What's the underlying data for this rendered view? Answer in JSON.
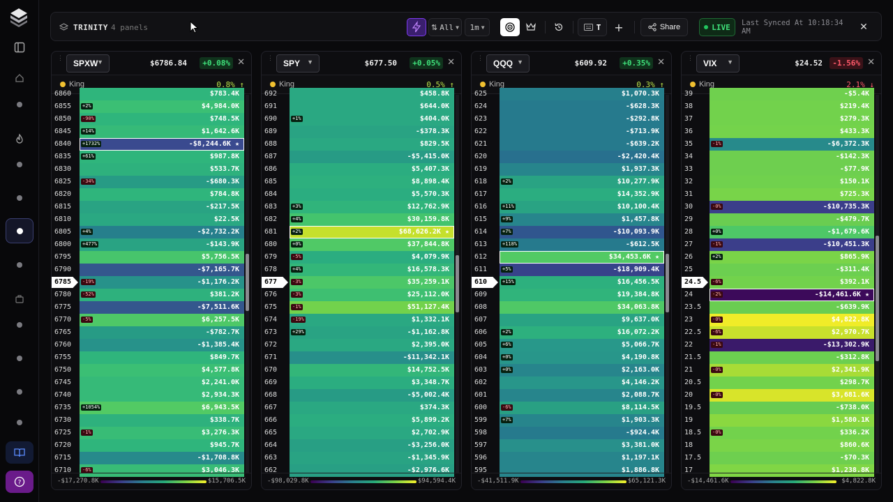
{
  "app": {
    "name": "TRINITY",
    "panel_count": "4 panels"
  },
  "toolbar": {
    "filter_all": "All",
    "interval": "1m",
    "tool_t": "T",
    "share": "Share",
    "live": "LIVE",
    "last_synced": "Last Synced At 10:18:34 AM"
  },
  "colors": {
    "accent": "#7c3aed",
    "live_green": "#22c55e",
    "king_dot": "#f0c030",
    "positive": "#3fe07a",
    "negative": "#ff5a6a"
  },
  "sidebar": {
    "icons": [
      "logo-icon",
      "panel-toggle-icon",
      "home-icon",
      "dot-icon",
      "fire-icon",
      "dot-icon",
      "dot-icon",
      "dot-icon-active",
      "dot-icon",
      "briefcase-icon",
      "dot-icon",
      "dot-icon",
      "dot-icon",
      "dot-icon",
      "book-icon",
      "help-icon"
    ]
  },
  "panels": [
    {
      "ticker": "SPXW",
      "price": "$6786.84",
      "change": "+0.08%",
      "change_dir": "pos",
      "king_label": "King",
      "king_pct": "0.8% ↑",
      "king_dir": "up",
      "scale_min": "-$17,270.8K",
      "scale_max": "$15,706.5K",
      "rows": [
        {
          "strike": "6860",
          "value": "$783.4K",
          "color": "#2fb57c"
        },
        {
          "strike": "6855",
          "value": "$4,984.0K",
          "color": "#3bbf74",
          "tag": "+2%"
        },
        {
          "strike": "6850",
          "value": "$748.5K",
          "color": "#2fb57c",
          "tag": "-90%",
          "tag_neg": true
        },
        {
          "strike": "6845",
          "value": "$1,642.6K",
          "color": "#36ba78",
          "tag": "+14%"
        },
        {
          "strike": "6840",
          "value": "-$8,244.6K ★",
          "color": "#3a4a8f",
          "tag": "+1732%",
          "hl": true
        },
        {
          "strike": "6835",
          "value": "$987.8K",
          "color": "#2fb57c",
          "tag": "+61%"
        },
        {
          "strike": "6830",
          "value": "$533.7K",
          "color": "#2eb17d"
        },
        {
          "strike": "6825",
          "value": "-$680.3K",
          "color": "#279b85",
          "tag": "-34%",
          "tag_neg": true
        },
        {
          "strike": "6820",
          "value": "$784.8K",
          "color": "#2fb57c"
        },
        {
          "strike": "6815",
          "value": "-$217.5K",
          "color": "#29a383"
        },
        {
          "strike": "6810",
          "value": "$22.5K",
          "color": "#2aa882"
        },
        {
          "strike": "6805",
          "value": "-$2,732.2K",
          "color": "#267f8c",
          "tag": "+4%"
        },
        {
          "strike": "6800",
          "value": "-$143.9K",
          "color": "#29a383",
          "tag": "+477%"
        },
        {
          "strike": "6795",
          "value": "$5,756.5K",
          "color": "#47c56c"
        },
        {
          "strike": "6790",
          "value": "-$7,165.7K",
          "color": "#34578d"
        },
        {
          "strike": "6785",
          "value": "-$1,176.2K",
          "color": "#27928a",
          "tag": "-19%",
          "tag_neg": true,
          "current": true
        },
        {
          "strike": "6780",
          "value": "$381.2K",
          "color": "#2eb17d",
          "tag": "-52%",
          "tag_neg": true
        },
        {
          "strike": "6775",
          "value": "-$7,511.6K",
          "color": "#34578d"
        },
        {
          "strike": "6770",
          "value": "$6,257.5K",
          "color": "#4ec867",
          "tag": "-5%",
          "tag_neg": true
        },
        {
          "strike": "6765",
          "value": "-$782.7K",
          "color": "#279b85"
        },
        {
          "strike": "6760",
          "value": "-$1,385.4K",
          "color": "#27928a"
        },
        {
          "strike": "6755",
          "value": "$849.7K",
          "color": "#2fb57c"
        },
        {
          "strike": "6750",
          "value": "$4,577.8K",
          "color": "#3bbf74"
        },
        {
          "strike": "6745",
          "value": "$2,241.0K",
          "color": "#36ba78"
        },
        {
          "strike": "6740",
          "value": "$2,934.3K",
          "color": "#36ba78"
        },
        {
          "strike": "6735",
          "value": "$6,943.5K",
          "color": "#52ca64",
          "tag": "+1054%"
        },
        {
          "strike": "6730",
          "value": "$338.7K",
          "color": "#2eb17d"
        },
        {
          "strike": "6725",
          "value": "$3,276.3K",
          "color": "#38bc76",
          "tag": "-1%",
          "tag_neg": true
        },
        {
          "strike": "6720",
          "value": "$945.7K",
          "color": "#2fb57c"
        },
        {
          "strike": "6715",
          "value": "-$1,708.8K",
          "color": "#278a8b"
        },
        {
          "strike": "6710",
          "value": "$3,046.3K",
          "color": "#38bc76",
          "tag": "-6%",
          "tag_neg": true
        }
      ]
    },
    {
      "ticker": "SPY",
      "price": "$677.50",
      "change": "+0.05%",
      "change_dir": "pos",
      "king_label": "King",
      "king_pct": "0.5% ↑",
      "king_dir": "up",
      "scale_min": "-$98,029.8K",
      "scale_max": "$94,594.4K",
      "rows": [
        {
          "strike": "692",
          "value": "$458.8K",
          "color": "#2aa882"
        },
        {
          "strike": "691",
          "value": "$644.0K",
          "color": "#2aa882"
        },
        {
          "strike": "690",
          "value": "$404.0K",
          "color": "#2aa882",
          "tag": "+1%"
        },
        {
          "strike": "689",
          "value": "-$378.3K",
          "color": "#29a383"
        },
        {
          "strike": "688",
          "value": "$829.5K",
          "color": "#2aa882"
        },
        {
          "strike": "687",
          "value": "-$5,415.0K",
          "color": "#279b85"
        },
        {
          "strike": "686",
          "value": "$5,407.3K",
          "color": "#2bad80"
        },
        {
          "strike": "685",
          "value": "$8,898.4K",
          "color": "#2db07e"
        },
        {
          "strike": "684",
          "value": "$5,570.3K",
          "color": "#2bad80"
        },
        {
          "strike": "683",
          "value": "$12,762.9K",
          "color": "#30b47b",
          "tag": "+3%"
        },
        {
          "strike": "682",
          "value": "$30,159.8K",
          "color": "#44c46d",
          "tag": "+4%"
        },
        {
          "strike": "681",
          "value": "$68,626.2K ★",
          "color": "#c5e02c",
          "tag": "+2%",
          "hl": true
        },
        {
          "strike": "680",
          "value": "$37,844.8K",
          "color": "#50c966",
          "tag": "+0%"
        },
        {
          "strike": "679",
          "value": "$4,079.9K",
          "color": "#2bad80",
          "tag": "-5%",
          "tag_neg": true
        },
        {
          "strike": "678",
          "value": "$16,578.3K",
          "color": "#33b679",
          "tag": "+4%"
        },
        {
          "strike": "677",
          "value": "$35,259.1K",
          "color": "#4cc768",
          "tag": "-3%",
          "tag_neg": true,
          "current": true
        },
        {
          "strike": "676",
          "value": "$25,112.0K",
          "color": "#3ebf71",
          "tag": "-3%",
          "tag_neg": true
        },
        {
          "strike": "675",
          "value": "$51,127.4K",
          "color": "#72d24c",
          "tag": "-1%",
          "tag_neg": true
        },
        {
          "strike": "674",
          "value": "$1,332.1K",
          "color": "#2aa882",
          "tag": "-19%",
          "tag_neg": true
        },
        {
          "strike": "673",
          "value": "-$1,162.8K",
          "color": "#29a383",
          "tag": "+29%"
        },
        {
          "strike": "672",
          "value": "$2,395.0K",
          "color": "#2aa882"
        },
        {
          "strike": "671",
          "value": "-$11,342.1K",
          "color": "#278f8a"
        },
        {
          "strike": "670",
          "value": "$14,752.5K",
          "color": "#33b679"
        },
        {
          "strike": "669",
          "value": "$3,348.7K",
          "color": "#2bad80"
        },
        {
          "strike": "668",
          "value": "-$5,002.4K",
          "color": "#279b85"
        },
        {
          "strike": "667",
          "value": "$374.3K",
          "color": "#2aa882"
        },
        {
          "strike": "666",
          "value": "$5,899.2K",
          "color": "#2bad80"
        },
        {
          "strike": "665",
          "value": "$2,702.9K",
          "color": "#2aa882"
        },
        {
          "strike": "664",
          "value": "-$3,256.0K",
          "color": "#289f84"
        },
        {
          "strike": "663",
          "value": "-$1,345.9K",
          "color": "#29a383"
        },
        {
          "strike": "662",
          "value": "-$2,976.6K",
          "color": "#289f84"
        }
      ]
    },
    {
      "ticker": "QQQ",
      "price": "$609.92",
      "change": "+0.35%",
      "change_dir": "pos",
      "king_label": "King",
      "king_pct": "0.3% ↑",
      "king_dir": "up",
      "scale_min": "-$41,511.9K",
      "scale_max": "$65,121.3K",
      "rows": [
        {
          "strike": "625",
          "value": "$1,070.3K",
          "color": "#267f8c"
        },
        {
          "strike": "624",
          "value": "-$628.3K",
          "color": "#267a8d"
        },
        {
          "strike": "623",
          "value": "-$292.8K",
          "color": "#267a8d"
        },
        {
          "strike": "622",
          "value": "-$713.9K",
          "color": "#267a8d"
        },
        {
          "strike": "621",
          "value": "-$639.2K",
          "color": "#267a8d"
        },
        {
          "strike": "620",
          "value": "-$2,420.4K",
          "color": "#28708e"
        },
        {
          "strike": "619",
          "value": "$1,937.3K",
          "color": "#27858c"
        },
        {
          "strike": "618",
          "value": "$10,277.9K",
          "color": "#29a383",
          "tag": "+2%"
        },
        {
          "strike": "617",
          "value": "$14,352.9K",
          "color": "#2bad80"
        },
        {
          "strike": "616",
          "value": "$10,100.4K",
          "color": "#29a383",
          "tag": "+11%"
        },
        {
          "strike": "615",
          "value": "$1,457.8K",
          "color": "#27858c",
          "tag": "+9%"
        },
        {
          "strike": "614",
          "value": "-$10,093.9K",
          "color": "#30568e",
          "tag": "+7%"
        },
        {
          "strike": "613",
          "value": "-$612.5K",
          "color": "#267a8d",
          "tag": "+118%"
        },
        {
          "strike": "612",
          "value": "$34,453.6K ★",
          "color": "#52ca64",
          "hl": true
        },
        {
          "strike": "611",
          "value": "-$18,909.4K",
          "color": "#37438a",
          "tag": "+5%"
        },
        {
          "strike": "610",
          "value": "$16,456.5K",
          "color": "#2db07e",
          "tag": "+15%",
          "current": true
        },
        {
          "strike": "609",
          "value": "$19,384.8K",
          "color": "#30b47b"
        },
        {
          "strike": "608",
          "value": "$34,063.8K",
          "color": "#4fc866"
        },
        {
          "strike": "607",
          "value": "$9,637.0K",
          "color": "#29a383"
        },
        {
          "strike": "606",
          "value": "$16,072.2K",
          "color": "#2db07e",
          "tag": "+2%"
        },
        {
          "strike": "605",
          "value": "$5,066.7K",
          "color": "#28988a",
          "tag": "+6%"
        },
        {
          "strike": "604",
          "value": "$4,190.8K",
          "color": "#28968a",
          "tag": "+0%"
        },
        {
          "strike": "603",
          "value": "$2,163.0K",
          "color": "#27858c",
          "tag": "+0%"
        },
        {
          "strike": "602",
          "value": "$4,146.2K",
          "color": "#28968a"
        },
        {
          "strike": "601",
          "value": "$2,088.7K",
          "color": "#27858c"
        },
        {
          "strike": "600",
          "value": "$8,114.5K",
          "color": "#29a083",
          "tag": "-6%",
          "tag_neg": true
        },
        {
          "strike": "599",
          "value": "$1,903.3K",
          "color": "#27858c",
          "tag": "+7%"
        },
        {
          "strike": "598",
          "value": "-$924.4K",
          "color": "#267a8d"
        },
        {
          "strike": "597",
          "value": "$3,381.0K",
          "color": "#28908b"
        },
        {
          "strike": "596",
          "value": "$1,197.1K",
          "color": "#27858c"
        },
        {
          "strike": "595",
          "value": "$1,886.8K",
          "color": "#27858c"
        }
      ]
    },
    {
      "ticker": "VIX",
      "price": "$24.52",
      "change": "-1.56%",
      "change_dir": "neg",
      "king_label": "King",
      "king_pct": "2.1% ↓",
      "king_dir": "down",
      "scale_min": "-$14,461.6K",
      "scale_max": "$4,822.8K",
      "rows": [
        {
          "strike": "39",
          "value": "-$5.4K",
          "color": "#6fd04e"
        },
        {
          "strike": "38",
          "value": "$219.4K",
          "color": "#72d24c"
        },
        {
          "strike": "37",
          "value": "$279.3K",
          "color": "#72d24c"
        },
        {
          "strike": "36",
          "value": "$433.3K",
          "color": "#74d34b"
        },
        {
          "strike": "35",
          "value": "-$6,372.3K",
          "color": "#278a8b",
          "tag": "-1%",
          "tag_neg": true
        },
        {
          "strike": "34",
          "value": "-$142.3K",
          "color": "#6ecf4f"
        },
        {
          "strike": "33",
          "value": "-$77.9K",
          "color": "#6ecf4f"
        },
        {
          "strike": "32",
          "value": "$150.1K",
          "color": "#70d14d"
        },
        {
          "strike": "31",
          "value": "$725.3K",
          "color": "#78d449"
        },
        {
          "strike": "30",
          "value": "-$10,735.3K",
          "color": "#3b3e8a",
          "tag": "-0%",
          "tag_neg": true
        },
        {
          "strike": "29",
          "value": "-$479.7K",
          "color": "#6acd51"
        },
        {
          "strike": "28",
          "value": "-$1,679.6K",
          "color": "#4ec867",
          "tag": "+0%"
        },
        {
          "strike": "27",
          "value": "-$10,451.3K",
          "color": "#3b3e8a",
          "tag": "-1%",
          "tag_neg": true
        },
        {
          "strike": "26",
          "value": "$865.9K",
          "color": "#7ad448",
          "tag": "+2%"
        },
        {
          "strike": "25",
          "value": "-$311.4K",
          "color": "#6ccf50"
        },
        {
          "strike": "24.5",
          "value": "$392.1K",
          "color": "#72d24c",
          "tag": "-6%",
          "tag_neg": true,
          "current": true
        },
        {
          "strike": "24",
          "value": "-$14,461.6K ★",
          "color": "#3c0a5a",
          "tag": "-2%",
          "tag_neg": true,
          "hl": true
        },
        {
          "strike": "23.5",
          "value": "-$639.9K",
          "color": "#6acd51"
        },
        {
          "strike": "23",
          "value": "$4,822.8K",
          "color": "#f0ec28",
          "tag": "-0%",
          "tag_neg": true
        },
        {
          "strike": "22.5",
          "value": "$2,970.7K",
          "color": "#c8e02c",
          "tag": "-6%",
          "tag_neg": true
        },
        {
          "strike": "22",
          "value": "-$13,302.9K",
          "color": "#3a1a6a",
          "tag": "-1%",
          "tag_neg": true
        },
        {
          "strike": "21.5",
          "value": "-$312.8K",
          "color": "#6ccf50"
        },
        {
          "strike": "21",
          "value": "$2,341.9K",
          "color": "#a8dc36",
          "tag": "-0%",
          "tag_neg": true
        },
        {
          "strike": "20.5",
          "value": "$298.7K",
          "color": "#72d24c"
        },
        {
          "strike": "20",
          "value": "$3,681.6K",
          "color": "#d8e42a",
          "tag": "-0%",
          "tag_neg": true
        },
        {
          "strike": "19.5",
          "value": "-$738.0K",
          "color": "#68cc52"
        },
        {
          "strike": "19",
          "value": "$1,580.1K",
          "color": "#8ad840"
        },
        {
          "strike": "18.5",
          "value": "$336.2K",
          "color": "#72d24c",
          "tag": "-0%",
          "tag_neg": true
        },
        {
          "strike": "18",
          "value": "$860.6K",
          "color": "#7ad448"
        },
        {
          "strike": "17.5",
          "value": "-$70.3K",
          "color": "#6ecf4f"
        },
        {
          "strike": "17",
          "value": "$1,238.8K",
          "color": "#80d645"
        }
      ]
    }
  ]
}
